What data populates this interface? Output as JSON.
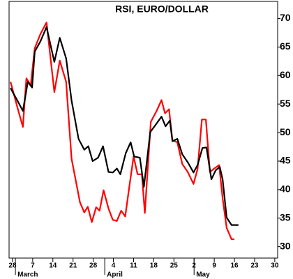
{
  "chart_data": {
    "type": "line",
    "title": "RSI, EURO/DOLLAR",
    "xlim": [
      -1.2,
      92
    ],
    "ylim": [
      28,
      73
    ],
    "xticks": [
      {
        "value": 0,
        "label": "28"
      },
      {
        "value": 7,
        "label": "7"
      },
      {
        "value": 14,
        "label": "14"
      },
      {
        "value": 21,
        "label": "21"
      },
      {
        "value": 28,
        "label": "28"
      },
      {
        "value": 35,
        "label": "4"
      },
      {
        "value": 42,
        "label": "11"
      },
      {
        "value": 49,
        "label": "18"
      },
      {
        "value": 56,
        "label": "25"
      },
      {
        "value": 63,
        "label": "2"
      },
      {
        "value": 70,
        "label": "9"
      },
      {
        "value": 77,
        "label": "16"
      },
      {
        "value": 84,
        "label": "23"
      },
      {
        "value": 91,
        "label": "30"
      }
    ],
    "x_month_labels": [
      {
        "value": 1,
        "label": "March"
      },
      {
        "value": 32,
        "label": "April"
      },
      {
        "value": 63,
        "label": "May"
      }
    ],
    "yticks": [
      30,
      35,
      40,
      45,
      50,
      55,
      60,
      65,
      70
    ],
    "series": [
      {
        "color": "#ff0000",
        "x": [
          -0.7,
          1.7,
          3.6,
          4.8,
          6.3,
          7.7,
          9.7,
          11.8,
          14.5,
          16.4,
          18.6,
          20.5,
          23.4,
          24.9,
          26.1,
          27.5,
          29.0,
          30.2,
          31.6,
          33.3,
          34.8,
          36.2,
          37.7,
          39.1,
          40.6,
          42.0,
          43.4,
          44.9,
          45.9,
          48.0,
          50.0,
          51.7,
          52.9,
          54.3,
          55.5,
          57.2,
          58.9,
          60.8,
          62.8,
          64.2,
          65.7,
          67.1,
          68.5,
          70.0,
          71.7,
          72.9,
          74.3,
          76.0,
          77.0
        ],
        "values": [
          58.9,
          54.4,
          51.0,
          59.5,
          58.3,
          64.8,
          67.3,
          69.3,
          57.1,
          62.6,
          58.9,
          45.4,
          37.8,
          36.0,
          37.0,
          34.3,
          36.9,
          36.3,
          39.9,
          36.7,
          34.7,
          34.5,
          36.3,
          35.3,
          40.8,
          45.8,
          42.7,
          42.7,
          35.9,
          51.9,
          53.8,
          55.7,
          53.4,
          54.1,
          48.6,
          48.3,
          44.5,
          43.1,
          41.0,
          43.6,
          52.3,
          52.3,
          43.1,
          43.7,
          44.3,
          38.5,
          33.3,
          31.3,
          31.3
        ]
      },
      {
        "color": "#000000",
        "x": [
          -0.7,
          1.7,
          3.6,
          5.3,
          6.8,
          7.7,
          9.7,
          11.8,
          14.5,
          16.4,
          18.6,
          20.5,
          22.9,
          24.9,
          26.3,
          27.8,
          29.7,
          31.4,
          33.3,
          34.8,
          36.2,
          37.4,
          39.3,
          41.0,
          42.2,
          44.2,
          45.6,
          47.8,
          50.0,
          51.7,
          53.1,
          54.6,
          55.5,
          57.2,
          58.9,
          60.8,
          62.8,
          64.2,
          65.9,
          67.3,
          69.0,
          70.5,
          71.9,
          72.9,
          74.3,
          76.0,
          78.4
        ],
        "values": [
          57.8,
          55.6,
          53.8,
          58.9,
          57.9,
          64.2,
          66.0,
          68.5,
          62.4,
          66.6,
          63.0,
          55.6,
          48.9,
          47.0,
          47.6,
          45.0,
          45.6,
          47.6,
          43.1,
          43.0,
          43.7,
          42.7,
          46.4,
          48.3,
          45.8,
          45.6,
          40.5,
          50.1,
          51.6,
          52.8,
          51.1,
          52.1,
          48.5,
          48.9,
          46.2,
          44.8,
          43.0,
          44.3,
          47.3,
          47.4,
          41.8,
          43.4,
          44.0,
          41.8,
          35.1,
          33.8,
          33.8
        ]
      }
    ]
  }
}
